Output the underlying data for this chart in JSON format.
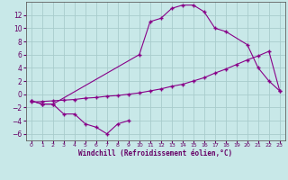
{
  "xlabel": "Windchill (Refroidissement éolien,°C)",
  "bg_color": "#c8e8e8",
  "line_color": "#880088",
  "grid_color": "#a8cccc",
  "xlim": [
    -0.5,
    23.5
  ],
  "ylim": [
    -7,
    14
  ],
  "yticks": [
    -6,
    -4,
    -2,
    0,
    2,
    4,
    6,
    8,
    10,
    12
  ],
  "xticks": [
    0,
    1,
    2,
    3,
    4,
    5,
    6,
    7,
    8,
    9,
    10,
    11,
    12,
    13,
    14,
    15,
    16,
    17,
    18,
    19,
    20,
    21,
    22,
    23
  ],
  "line1_x": [
    0,
    1,
    2,
    3,
    4,
    5,
    6,
    7,
    8,
    9
  ],
  "line1_y": [
    -1.0,
    -1.5,
    -1.5,
    -3.0,
    -3.0,
    -4.5,
    -5.0,
    -6.0,
    -4.5,
    -4.0
  ],
  "line2_x": [
    0,
    1,
    2,
    10,
    11,
    12,
    13,
    14,
    15,
    16,
    17,
    18,
    20,
    21,
    22,
    23
  ],
  "line2_y": [
    -1.0,
    -1.5,
    -1.5,
    6.0,
    11.0,
    11.5,
    13.0,
    13.5,
    13.5,
    12.5,
    10.0,
    9.5,
    7.5,
    4.0,
    2.0,
    0.5
  ],
  "line3_x": [
    0,
    1,
    2,
    3,
    4,
    5,
    6,
    7,
    8,
    9,
    10,
    11,
    12,
    13,
    14,
    15,
    16,
    17,
    18,
    19,
    20,
    21,
    22,
    23
  ],
  "line3_y": [
    -1.2,
    -1.1,
    -1.0,
    -0.9,
    -0.8,
    -0.6,
    -0.5,
    -0.3,
    -0.2,
    0.0,
    0.2,
    0.5,
    0.8,
    1.2,
    1.5,
    2.0,
    2.5,
    3.2,
    3.8,
    4.5,
    5.2,
    5.8,
    6.5,
    0.5
  ]
}
